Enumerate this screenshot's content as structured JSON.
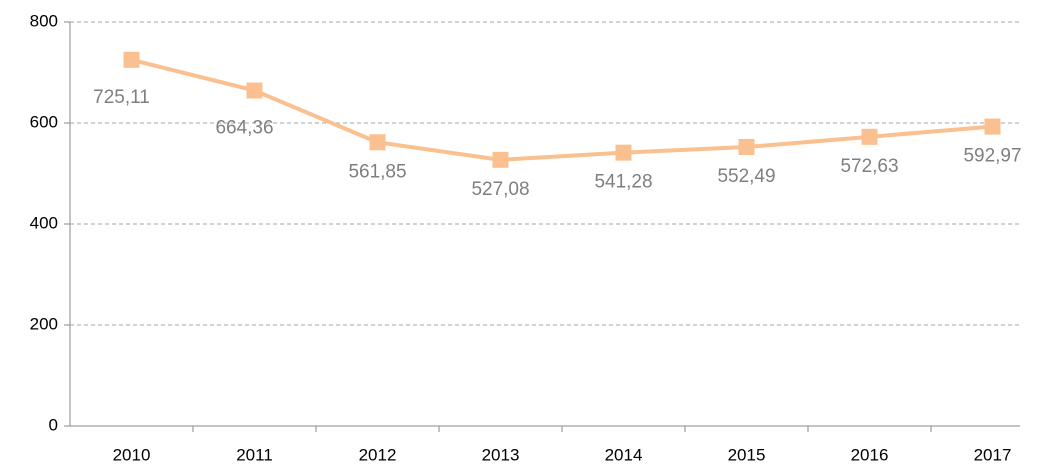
{
  "chart_data": {
    "type": "line",
    "categories": [
      "2010",
      "2011",
      "2012",
      "2013",
      "2014",
      "2015",
      "2016",
      "2017"
    ],
    "series": [
      {
        "name": "Series 1",
        "color": "#fac090",
        "values": [
          725.11,
          664.36,
          561.85,
          527.08,
          541.28,
          552.49,
          572.63,
          592.97
        ],
        "value_labels": [
          "725,11",
          "664,36",
          "561,85",
          "527,08",
          "541,28",
          "552,49",
          "572,63",
          "592,97"
        ]
      }
    ],
    "ylim": [
      0,
      800
    ],
    "yticks": [
      0,
      200,
      400,
      600,
      800
    ],
    "grid": true
  }
}
